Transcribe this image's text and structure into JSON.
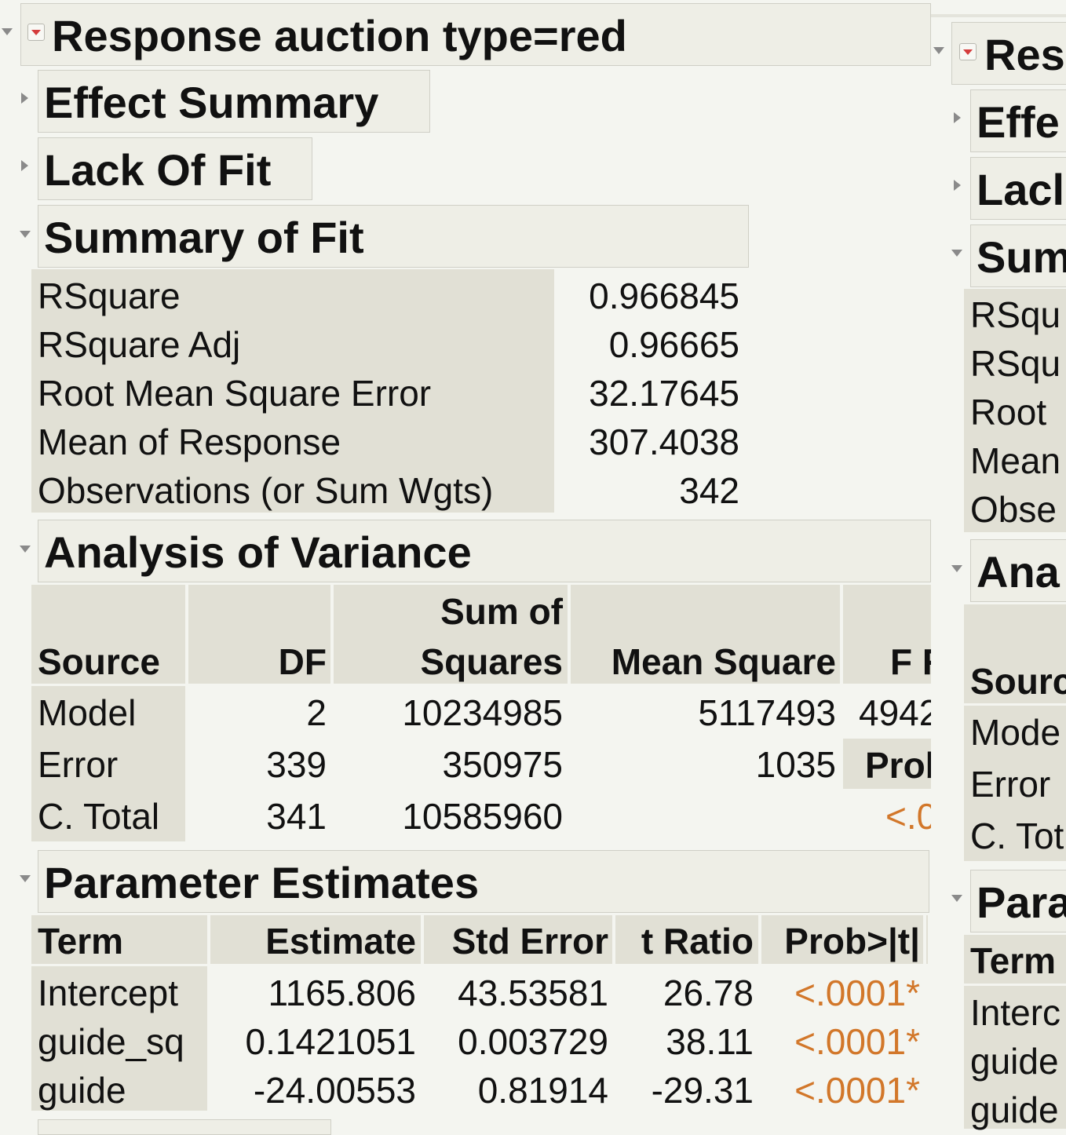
{
  "left": {
    "title": "Response auction type=red",
    "effect_summary": "Effect Summary",
    "lack_of_fit": "Lack Of Fit",
    "summary_of_fit": {
      "title": "Summary of Fit",
      "rows": [
        {
          "label": "RSquare",
          "value": "0.966845"
        },
        {
          "label": "RSquare Adj",
          "value": "0.96665"
        },
        {
          "label": "Root Mean Square Error",
          "value": "32.17645"
        },
        {
          "label": "Mean of Response",
          "value": "307.4038"
        },
        {
          "label": "Observations (or Sum Wgts)",
          "value": "342"
        }
      ]
    },
    "anova": {
      "title": "Analysis of Variance",
      "headers": {
        "source": "Source",
        "df": "DF",
        "ss_line1": "Sum of",
        "ss_line2": "Squares",
        "ms": "Mean Square",
        "f": "F R"
      },
      "rows": [
        {
          "source": "Model",
          "df": "2",
          "ss": "10234985",
          "ms": "5117493",
          "f": "4942"
        },
        {
          "source": "Error",
          "df": "339",
          "ss": "350975",
          "ms": "1035",
          "f": "Prob"
        },
        {
          "source": "C. Total",
          "df": "341",
          "ss": "10585960",
          "ms": "",
          "f": "<.0"
        }
      ]
    },
    "params": {
      "title": "Parameter Estimates",
      "headers": {
        "term": "Term",
        "estimate": "Estimate",
        "stderr": "Std Error",
        "tratio": "t Ratio",
        "prob": "Prob>|t|"
      },
      "rows": [
        {
          "term": "Intercept",
          "estimate": "1165.806",
          "stderr": "43.53581",
          "tratio": "26.78",
          "prob": "<.0001*"
        },
        {
          "term": "guide_sq",
          "estimate": "0.1421051",
          "stderr": "0.003729",
          "tratio": "38.11",
          "prob": "<.0001*"
        },
        {
          "term": "guide",
          "estimate": "-24.00553",
          "stderr": "0.81914",
          "tratio": "-29.31",
          "prob": "<.0001*"
        }
      ]
    }
  },
  "right": {
    "title": "Res",
    "effect_summary": "Effe",
    "lack_of_fit": "Lacl",
    "summary_of_fit": "Sum",
    "sof_rows": [
      "RSqu",
      "RSqu",
      "Root",
      "Mean",
      "Obse"
    ],
    "anova": "Ana",
    "anova_source": "Sourc",
    "anova_rows": [
      "Mode",
      "Error",
      "C. Tot"
    ],
    "params": "Para",
    "params_term": "Term",
    "params_rows": [
      "Interc",
      "guide",
      "guide"
    ]
  },
  "colors": {
    "background": "#f4f5f0",
    "header_bg": "#eeeee6",
    "label_shade": "#e1e0d5",
    "prob_orange": "#d2772a",
    "menu_red": "#d43c3c"
  },
  "icons": {
    "disclosure_open": "triangle-down",
    "disclosure_closed": "triangle-right",
    "menu": "red-hotspot-menu"
  }
}
